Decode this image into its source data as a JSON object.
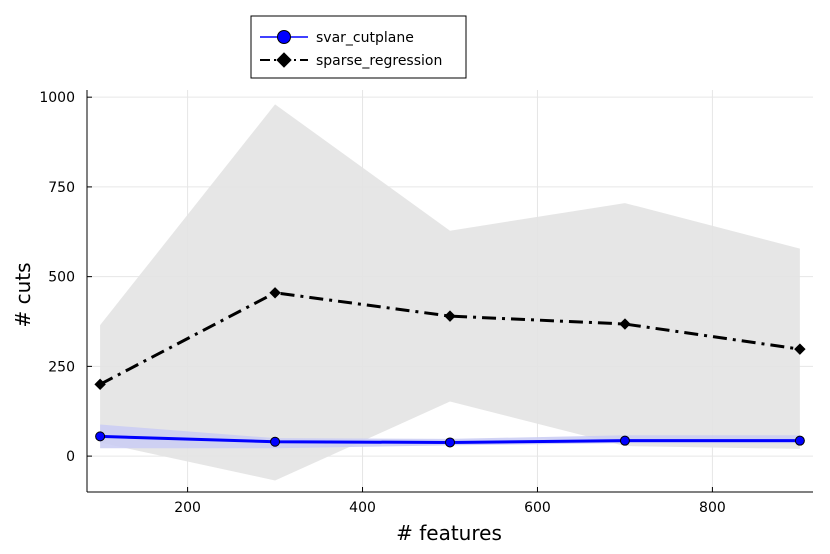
{
  "chart_data": {
    "type": "line",
    "title": "",
    "xlabel": "# features",
    "ylabel": "# cuts",
    "xlim": [
      85,
      915
    ],
    "ylim": [
      -100,
      1020
    ],
    "xticks": [
      200,
      400,
      600,
      800
    ],
    "yticks": [
      0,
      250,
      500,
      750,
      1000
    ],
    "grid": true,
    "legend_position": "top-left-outside",
    "x": [
      100,
      300,
      500,
      700,
      900
    ],
    "series": [
      {
        "name": "svar_cutplane",
        "values": [
          55,
          40,
          38,
          43,
          43
        ],
        "lower": [
          22,
          22,
          30,
          36,
          36
        ],
        "upper": [
          88,
          50,
          48,
          58,
          58
        ],
        "color": "#0000ff",
        "band_color": "#c9cbf3",
        "marker": "circle",
        "line_style": "solid"
      },
      {
        "name": "sparse_regression",
        "values": [
          200,
          455,
          390,
          368,
          298
        ],
        "lower": [
          38,
          -68,
          152,
          28,
          20
        ],
        "upper": [
          365,
          980,
          628,
          705,
          578
        ],
        "color": "#000000",
        "band_color": "#e3e3e3",
        "marker": "diamond",
        "line_style": "dashdot"
      }
    ]
  }
}
